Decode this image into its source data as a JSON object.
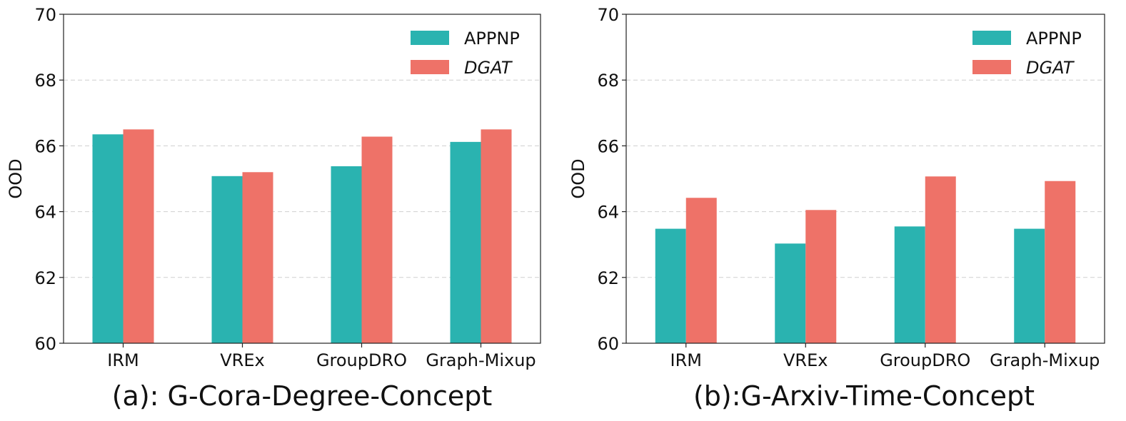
{
  "chart_data": [
    {
      "type": "bar",
      "caption": "(a): G-Cora-Degree-Concept",
      "categories": [
        "IRM",
        "VREx",
        "GroupDRO",
        "Graph-Mixup"
      ],
      "series": [
        {
          "name": "APPNP",
          "values": [
            66.35,
            65.08,
            65.38,
            66.12
          ]
        },
        {
          "name": "DGAT",
          "values": [
            66.5,
            65.2,
            66.28,
            66.5
          ]
        }
      ],
      "ylabel": "OOD",
      "ylim": [
        60,
        70
      ],
      "yticks": [
        "60",
        "62",
        "64",
        "66",
        "68",
        "70"
      ],
      "grid": true,
      "legend": "top-right"
    },
    {
      "type": "bar",
      "caption": "(b):G-Arxiv-Time-Concept",
      "categories": [
        "IRM",
        "VREx",
        "GroupDRO",
        "Graph-Mixup"
      ],
      "series": [
        {
          "name": "APPNP",
          "values": [
            63.48,
            63.03,
            63.55,
            63.48
          ]
        },
        {
          "name": "DGAT",
          "values": [
            64.42,
            64.05,
            65.07,
            64.93
          ]
        }
      ],
      "ylabel": "OOD",
      "ylim": [
        60,
        70
      ],
      "yticks": [
        "60",
        "62",
        "64",
        "66",
        "68",
        "70"
      ],
      "grid": true,
      "legend": "top-right"
    }
  ],
  "colors": {
    "APPNP": "#2ab3b0",
    "DGAT": "#ee7268"
  }
}
